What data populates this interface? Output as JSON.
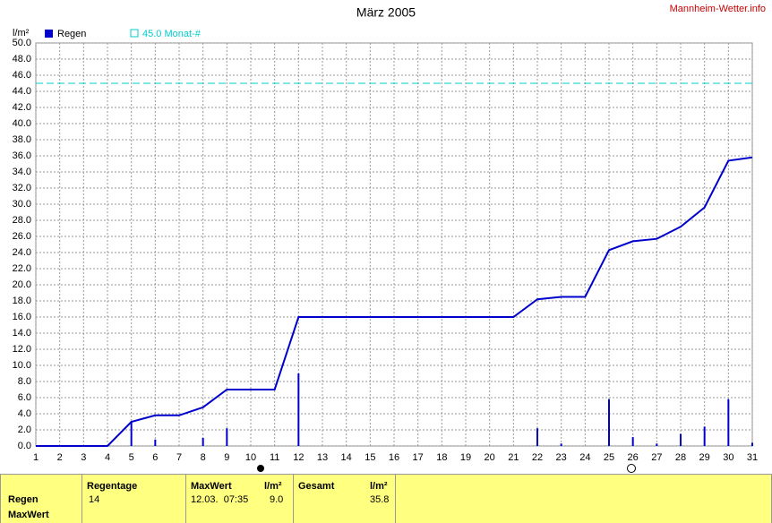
{
  "chart_data": {
    "type": "bar-line",
    "title": "März 2005",
    "source": "Mannheim-Wetter.info",
    "y_unit": "l/m²",
    "x": [
      1,
      2,
      3,
      4,
      5,
      6,
      7,
      8,
      9,
      10,
      11,
      12,
      13,
      14,
      15,
      16,
      17,
      18,
      19,
      20,
      21,
      22,
      23,
      24,
      25,
      26,
      27,
      28,
      29,
      30,
      31
    ],
    "xlim": [
      1,
      31
    ],
    "xticks": [
      1,
      2,
      3,
      4,
      5,
      6,
      7,
      8,
      9,
      10,
      11,
      12,
      13,
      14,
      15,
      16,
      17,
      18,
      19,
      20,
      21,
      22,
      23,
      24,
      25,
      26,
      27,
      28,
      29,
      30,
      31
    ],
    "ylim": [
      0,
      50
    ],
    "yticks": [
      {
        "value": 0,
        "label": "0.0"
      },
      {
        "value": 2,
        "label": "2.0"
      },
      {
        "value": 4,
        "label": "4.0"
      },
      {
        "value": 6,
        "label": "6.0"
      },
      {
        "value": 8,
        "label": "8.0"
      },
      {
        "value": 10,
        "label": "10.0"
      },
      {
        "value": 12,
        "label": "12.0"
      },
      {
        "value": 14,
        "label": "14.0"
      },
      {
        "value": 16,
        "label": "16.0"
      },
      {
        "value": 18,
        "label": "18.0"
      },
      {
        "value": 20,
        "label": "20.0"
      },
      {
        "value": 22,
        "label": "22.0"
      },
      {
        "value": 24,
        "label": "24.0"
      },
      {
        "value": 26,
        "label": "26.0"
      },
      {
        "value": 28,
        "label": "28.0"
      },
      {
        "value": 30,
        "label": "30.0"
      },
      {
        "value": 32,
        "label": "32.0"
      },
      {
        "value": 34,
        "label": "34.0"
      },
      {
        "value": 36,
        "label": "36.0"
      },
      {
        "value": 38,
        "label": "38.0"
      },
      {
        "value": 40,
        "label": "40.0"
      },
      {
        "value": 42,
        "label": "42.0"
      },
      {
        "value": 44,
        "label": "44.0"
      },
      {
        "value": 46,
        "label": "46.0"
      },
      {
        "value": 48,
        "label": "48.0"
      },
      {
        "value": 50,
        "label": "50.0"
      }
    ],
    "grid": true,
    "series": [
      {
        "name": "Regen",
        "type": "bar",
        "color": "#0000cc",
        "values": [
          0,
          0,
          0,
          0,
          3.0,
          0.8,
          0,
          1.0,
          2.2,
          0,
          0,
          9.0,
          0,
          0,
          0,
          0,
          0,
          0,
          0,
          0,
          0,
          2.2,
          0.3,
          0,
          5.8,
          1.1,
          0.3,
          1.5,
          2.4,
          5.8,
          0.4
        ]
      },
      {
        "type": "line",
        "color": "#0000cc",
        "values": [
          0,
          0,
          0,
          0,
          3.0,
          3.8,
          3.8,
          4.8,
          7.0,
          7.0,
          7.0,
          16.0,
          16.0,
          16.0,
          16.0,
          16.0,
          16.0,
          16.0,
          16.0,
          16.0,
          16.0,
          18.2,
          18.5,
          18.5,
          24.3,
          25.4,
          25.7,
          27.2,
          29.6,
          35.4,
          35.8
        ]
      }
    ],
    "reference_line": {
      "value": 45,
      "label": "45.0 Monat-#",
      "color": "#00cccc"
    }
  },
  "summary": {
    "row_labels": [
      "Regen",
      "MaxWert"
    ],
    "regentage": {
      "header": "Regentage",
      "value": "14"
    },
    "maxwert": {
      "header": "MaxWert",
      "unit": "l/m²",
      "time": "12.03.  07:35",
      "value": "9.0"
    },
    "gesamt": {
      "header": "Gesamt",
      "unit": "l/m²",
      "value": "35.8"
    }
  }
}
